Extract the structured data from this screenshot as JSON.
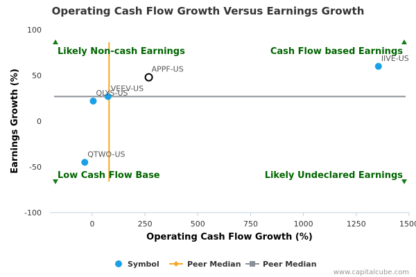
{
  "chart_data": {
    "type": "scatter",
    "title": "Operating Cash Flow Growth Versus Earnings Growth",
    "xlabel": "Operating Cash Flow Growth (%)",
    "ylabel": "Earnings Growth (%)",
    "xlim": [
      -200,
      1500
    ],
    "ylim": [
      -100,
      100
    ],
    "x_ticks": [
      0,
      250,
      500,
      750,
      1000,
      1250,
      1500
    ],
    "y_ticks": [
      100,
      50,
      0,
      -50,
      -100
    ],
    "grid": false,
    "legend_position": "bottom",
    "series": [
      {
        "name": "Symbol",
        "color": "#1aa0e6",
        "points": [
          {
            "label": "IIVE-US",
            "x": 1355,
            "y": 60
          },
          {
            "label": "VEEV-US",
            "x": 75,
            "y": 27
          },
          {
            "label": "QLYS-US",
            "x": 5,
            "y": 22
          },
          {
            "label": "QTWO-US",
            "x": -35,
            "y": -45
          }
        ]
      }
    ],
    "highlight": {
      "label": "APPF-US",
      "x": 268,
      "y": 48
    },
    "peer_median_x": {
      "name": "Peer Median",
      "value": 80,
      "color": "#f5a623"
    },
    "peer_median_y": {
      "name": "Peer Median",
      "value": 27,
      "color": "#8a8f99"
    },
    "quadrants": {
      "top_left": "Likely Non-cash Earnings",
      "top_right": "Cash Flow based Earnings",
      "bottom_left": "Low Cash Flow Base",
      "bottom_right": "Likely Undeclared Earnings"
    },
    "marker_color": "#1a7a1a"
  },
  "credit": "www.capitalcube.com"
}
